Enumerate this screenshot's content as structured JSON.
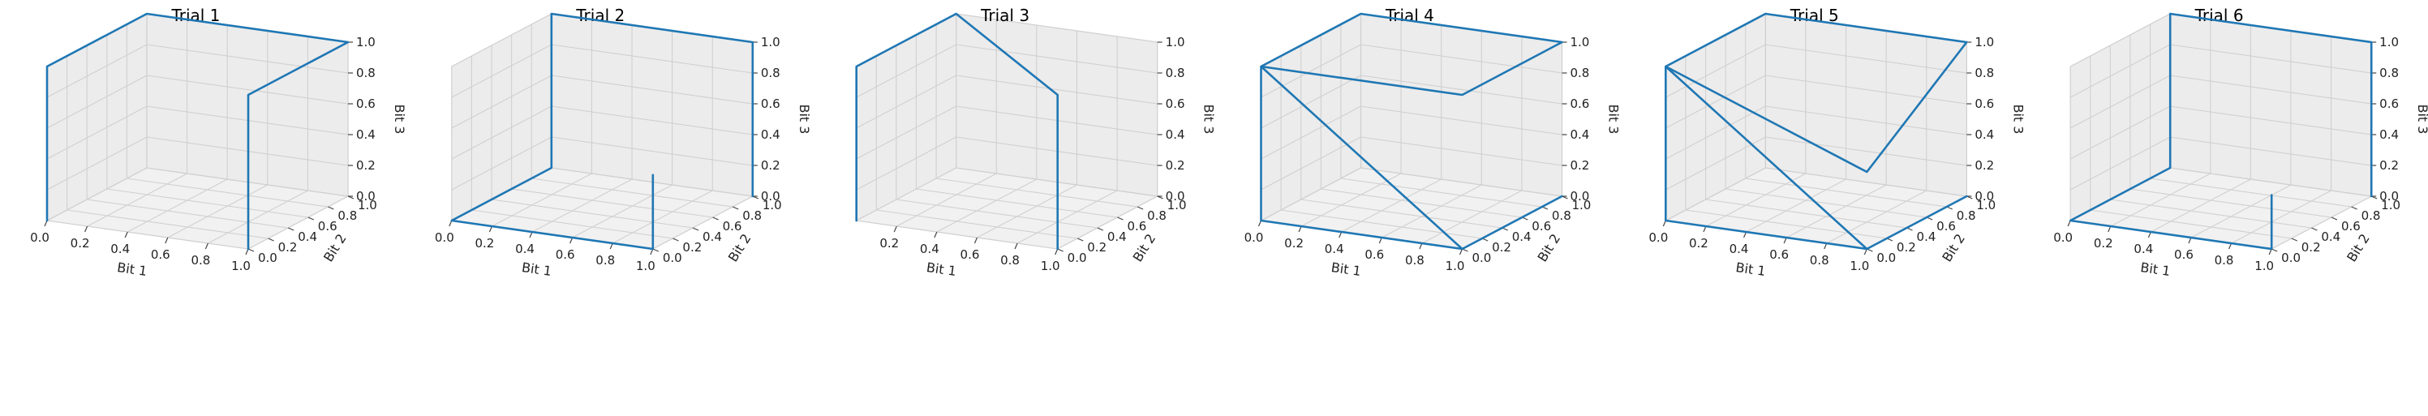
{
  "chart_data": [
    {
      "type": "line3d",
      "title": "Trial 1",
      "xlabel": "Bit 1",
      "ylabel": "Bit 2",
      "zlabel": "Bit 3",
      "xlim": [
        0,
        1
      ],
      "ylim": [
        0,
        1
      ],
      "zlim": [
        0,
        1
      ],
      "grid": true,
      "x_ticks": [
        "0.0",
        "0.2",
        "0.4",
        "0.6",
        "0.8",
        "1.0"
      ],
      "y_ticks": [
        "0.0",
        "0.2",
        "0.4",
        "0.6",
        "0.8",
        "1.0"
      ],
      "z_ticks": [
        "0.0",
        "0.2",
        "0.4",
        "0.6",
        "0.8",
        "1.0"
      ],
      "points": [
        [
          0,
          0,
          0
        ],
        [
          0,
          0,
          1
        ],
        [
          0,
          1,
          1
        ],
        [
          1,
          1,
          1
        ],
        [
          1,
          0,
          1
        ],
        [
          1,
          0,
          0
        ]
      ]
    },
    {
      "type": "line3d",
      "title": "Trial 2",
      "xlabel": "Bit 1",
      "ylabel": "Bit 2",
      "zlabel": "Bit 3",
      "xlim": [
        0,
        1
      ],
      "ylim": [
        0,
        1
      ],
      "zlim": [
        0,
        1
      ],
      "grid": true,
      "x_ticks": [
        "0.0",
        "0.2",
        "0.4",
        "0.6",
        "0.8",
        "1.0"
      ],
      "y_ticks": [
        "0.0",
        "0.2",
        "0.4",
        "0.6",
        "0.8",
        "1.0"
      ],
      "z_ticks": [
        "0.0",
        "0.2",
        "0.4",
        "0.6",
        "0.8",
        "1.0"
      ],
      "points": [
        [
          1,
          0,
          0.48
        ],
        [
          1,
          0,
          0
        ],
        [
          0,
          0,
          0
        ],
        [
          0,
          1,
          0
        ],
        [
          0,
          1,
          1
        ],
        [
          1,
          1,
          1
        ],
        [
          1,
          1,
          0
        ]
      ]
    },
    {
      "type": "line3d",
      "title": "Trial 3",
      "xlabel": "Bit 1",
      "ylabel": "Bit 2",
      "zlabel": "Bit 3",
      "xlim": [
        0,
        1
      ],
      "ylim": [
        0,
        1
      ],
      "zlim": [
        0,
        1
      ],
      "grid": true,
      "x_ticks": [
        "0.2",
        "0.4",
        "0.6",
        "0.8",
        "1.0"
      ],
      "y_ticks": [
        "0.0",
        "0.2",
        "0.4",
        "0.6",
        "0.8",
        "1.0"
      ],
      "z_ticks": [
        "0.0",
        "0.2",
        "0.4",
        "0.6",
        "0.8",
        "1.0"
      ],
      "points": [
        [
          0,
          0,
          0
        ],
        [
          0,
          0,
          1
        ],
        [
          0,
          1,
          1
        ],
        [
          1,
          0,
          1
        ],
        [
          1,
          0,
          0
        ]
      ]
    },
    {
      "type": "line3d",
      "title": "Trial 4",
      "xlabel": "Bit 1",
      "ylabel": "Bit 2",
      "zlabel": "Bit 3",
      "xlim": [
        0,
        1
      ],
      "ylim": [
        0,
        1
      ],
      "zlim": [
        0,
        1
      ],
      "grid": true,
      "x_ticks": [
        "0.0",
        "0.2",
        "0.4",
        "0.6",
        "0.8",
        "1.0"
      ],
      "y_ticks": [
        "0.0",
        "0.2",
        "0.4",
        "0.6",
        "0.8",
        "1.0"
      ],
      "z_ticks": [
        "0.0",
        "0.2",
        "0.4",
        "0.6",
        "0.8",
        "1.0"
      ],
      "points": [
        [
          0,
          0,
          0
        ],
        [
          0,
          0,
          1
        ],
        [
          0,
          1,
          1
        ],
        [
          1,
          1,
          1
        ],
        [
          1,
          0,
          1
        ],
        [
          0,
          0,
          1
        ],
        [
          1,
          0,
          0
        ],
        [
          0,
          0,
          0
        ],
        [
          1,
          0,
          0
        ],
        [
          1,
          1,
          0
        ]
      ]
    },
    {
      "type": "line3d",
      "title": "Trial 5",
      "xlabel": "Bit 1",
      "ylabel": "Bit 2",
      "zlabel": "Bit 3",
      "xlim": [
        0,
        1
      ],
      "ylim": [
        0,
        1
      ],
      "zlim": [
        0,
        1
      ],
      "grid": true,
      "x_ticks": [
        "0.0",
        "0.2",
        "0.4",
        "0.6",
        "0.8",
        "1.0"
      ],
      "y_ticks": [
        "0.0",
        "0.2",
        "0.4",
        "0.6",
        "0.8",
        "1.0"
      ],
      "z_ticks": [
        "0.0",
        "0.2",
        "0.4",
        "0.6",
        "0.8",
        "1.0"
      ],
      "points": [
        [
          1,
          0,
          0
        ],
        [
          0,
          0,
          0
        ],
        [
          0,
          0,
          1
        ],
        [
          0,
          1,
          1
        ],
        [
          1,
          1,
          1
        ],
        [
          1,
          0,
          0.5
        ],
        [
          0,
          0,
          1
        ],
        [
          1,
          0,
          0
        ],
        [
          1,
          1,
          0
        ]
      ]
    },
    {
      "type": "line3d",
      "title": "Trial 6",
      "xlabel": "Bit 1",
      "ylabel": "Bit 2",
      "zlabel": "Bit 3",
      "xlim": [
        0,
        1
      ],
      "ylim": [
        0,
        1
      ],
      "zlim": [
        0,
        1
      ],
      "grid": true,
      "x_ticks": [
        "0.0",
        "0.2",
        "0.4",
        "0.6",
        "0.8",
        "1.0"
      ],
      "y_ticks": [
        "0.0",
        "0.2",
        "0.4",
        "0.6",
        "0.8",
        "1.0"
      ],
      "z_ticks": [
        "0.0",
        "0.2",
        "0.4",
        "0.6",
        "0.8",
        "1.0"
      ],
      "points": [
        [
          1,
          0,
          0.35
        ],
        [
          1,
          0,
          0
        ],
        [
          0,
          0,
          0
        ],
        [
          0,
          1,
          0
        ],
        [
          0,
          1,
          1
        ],
        [
          1,
          1,
          1
        ],
        [
          1,
          1,
          0
        ]
      ]
    }
  ]
}
